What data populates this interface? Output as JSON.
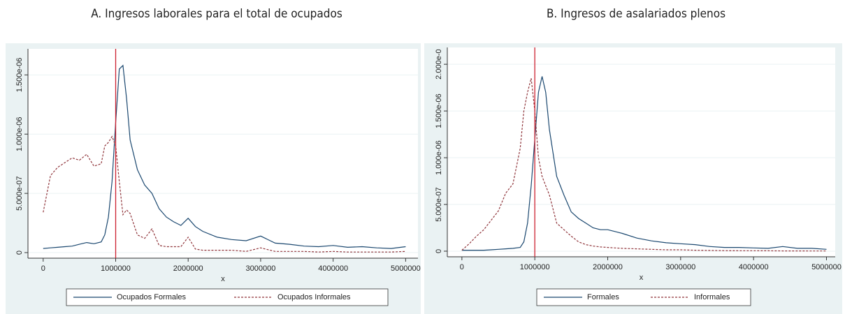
{
  "chart_data": [
    {
      "type": "line",
      "title": "A. Ingresos laborales para el total de ocupados",
      "xlabel": "x",
      "x": [
        0,
        100000,
        200000,
        300000,
        400000,
        500000,
        600000,
        700000,
        800000,
        850000,
        900000,
        950000,
        1000000,
        1050000,
        1100000,
        1150000,
        1200000,
        1300000,
        1400000,
        1500000,
        1600000,
        1700000,
        1800000,
        1900000,
        2000000,
        2100000,
        2200000,
        2400000,
        2600000,
        2800000,
        3000000,
        3200000,
        3400000,
        3600000,
        3800000,
        4000000,
        4200000,
        4400000,
        4600000,
        4800000,
        5000000
      ],
      "xlim": [
        -210000,
        5170000
      ],
      "xticks": [
        0,
        1000000,
        2000000,
        3000000,
        4000000,
        5000000
      ],
      "ylim": [
        -4.7e-08,
        1.72e-06
      ],
      "yticks": [
        0,
        {
          "value": 5e-07,
          "label": "5.000e-07"
        },
        {
          "value": 1e-06,
          "label": "1.000e-06"
        },
        {
          "value": 1.5e-06,
          "label": "1.500e-06"
        }
      ],
      "vline": 1000000,
      "vline_color": "#cc1f2f",
      "grid": true,
      "legend": "bottom",
      "series": [
        {
          "name": "Ocupados Formales",
          "color": "#1a476f",
          "dash": false,
          "values": [
            3.5e-08,
            4e-08,
            4.5e-08,
            5e-08,
            5.5e-08,
            7e-08,
            8.5e-08,
            7.5e-08,
            9e-08,
            1.5e-07,
            3e-07,
            6e-07,
            1.1e-06,
            1.55e-06,
            1.58e-06,
            1.3e-06,
            9.5e-07,
            7e-07,
            5.7e-07,
            5e-07,
            3.7e-07,
            3e-07,
            2.6e-07,
            2.3e-07,
            2.9e-07,
            2.2e-07,
            1.8e-07,
            1.3e-07,
            1.1e-07,
            1e-07,
            1.4e-07,
            8e-08,
            7e-08,
            5.5e-08,
            5e-08,
            6e-08,
            4.5e-08,
            5e-08,
            4e-08,
            3.5e-08,
            5e-08
          ]
        },
        {
          "name": "Ocupados Informales",
          "color": "#90353b",
          "dash": true,
          "values": [
            3.4e-07,
            6.5e-07,
            7.2e-07,
            7.6e-07,
            8e-07,
            7.8e-07,
            8.3e-07,
            7.3e-07,
            7.5e-07,
            9e-07,
            9.3e-07,
            9.8e-07,
            9e-07,
            6e-07,
            3.2e-07,
            3.6e-07,
            3.3e-07,
            1.5e-07,
            1.2e-07,
            2e-07,
            6e-08,
            5e-08,
            5e-08,
            5e-08,
            1.3e-07,
            3e-08,
            2e-08,
            2e-08,
            2e-08,
            1e-08,
            4e-08,
            1e-08,
            1e-08,
            1e-08,
            5e-09,
            1e-08,
            5e-09,
            5e-09,
            5e-09,
            5e-09,
            1e-08
          ]
        }
      ]
    },
    {
      "type": "line",
      "title": "B. Ingresos de asalariados plenos",
      "xlabel": "x",
      "x": [
        0,
        100000,
        200000,
        300000,
        400000,
        500000,
        600000,
        700000,
        800000,
        850000,
        900000,
        950000,
        1000000,
        1050000,
        1100000,
        1150000,
        1200000,
        1300000,
        1400000,
        1500000,
        1600000,
        1700000,
        1800000,
        1900000,
        2000000,
        2100000,
        2200000,
        2400000,
        2600000,
        2800000,
        3000000,
        3200000,
        3400000,
        3600000,
        3800000,
        4000000,
        4200000,
        4400000,
        4600000,
        4800000,
        5000000
      ],
      "xlim": [
        -200000,
        5120000
      ],
      "xticks": [
        0,
        1000000,
        2000000,
        3000000,
        4000000,
        5000000
      ],
      "ylim": [
        -6e-08,
        2.18e-06
      ],
      "yticks": [
        0,
        {
          "value": 5e-07,
          "label": "5.000e-07"
        },
        {
          "value": 1e-06,
          "label": "1.000e-06"
        },
        {
          "value": 1.5e-06,
          "label": "1.500e-06"
        },
        {
          "value": 2e-06,
          "label": "2.000e-0"
        }
      ],
      "vline": 1000000,
      "vline_color": "#cc1f2f",
      "grid": true,
      "legend": "bottom",
      "series": [
        {
          "name": "Formales",
          "color": "#1a476f",
          "dash": false,
          "values": [
            1e-08,
            1e-08,
            1e-08,
            1e-08,
            1.5e-08,
            2e-08,
            2.5e-08,
            3e-08,
            4e-08,
            1e-07,
            3e-07,
            7e-07,
            1.2e-06,
            1.7e-06,
            1.87e-06,
            1.7e-06,
            1.3e-06,
            8e-07,
            6e-07,
            4.2e-07,
            3.5e-07,
            3e-07,
            2.5e-07,
            2.3e-07,
            2.3e-07,
            2.1e-07,
            1.9e-07,
            1.4e-07,
            1.1e-07,
            9e-08,
            8e-08,
            7e-08,
            5e-08,
            4e-08,
            4e-08,
            3.5e-08,
            3e-08,
            5e-08,
            3e-08,
            3e-08,
            2e-08
          ]
        },
        {
          "name": "Informales",
          "color": "#90353b",
          "dash": true,
          "values": [
            1e-08,
            8e-08,
            1.6e-07,
            2.3e-07,
            3.3e-07,
            4.3e-07,
            6.2e-07,
            7.2e-07,
            1.1e-06,
            1.5e-06,
            1.7e-06,
            1.85e-06,
            1.5e-06,
            1e-06,
            8e-07,
            7e-07,
            6e-07,
            3e-07,
            2.3e-07,
            1.6e-07,
            1e-07,
            7e-08,
            5.5e-08,
            4.5e-08,
            4e-08,
            3.5e-08,
            3e-08,
            2.5e-08,
            2e-08,
            1.5e-08,
            1.5e-08,
            1e-08,
            8e-09,
            6e-09,
            5e-09,
            5e-09,
            4e-09,
            3e-09,
            3e-09,
            2e-09,
            2e-09
          ]
        }
      ]
    }
  ]
}
